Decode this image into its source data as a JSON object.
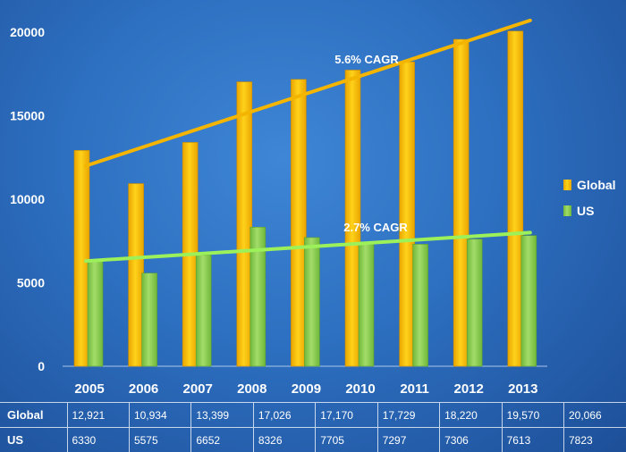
{
  "chart_data": {
    "type": "bar",
    "categories": [
      "2005",
      "2006",
      "2007",
      "2008",
      "2009",
      "2010",
      "2011",
      "2012",
      "2013"
    ],
    "series": [
      {
        "name": "Global",
        "values": [
          12921,
          10934,
          13399,
          17026,
          17170,
          17729,
          18220,
          19570,
          20066
        ],
        "color": "#f6c000",
        "trend": {
          "label": "5.6% CAGR",
          "start": 12000,
          "end": 20700,
          "color": "#f3b500"
        }
      },
      {
        "name": "US",
        "values": [
          6330,
          5575,
          6652,
          8326,
          7705,
          7297,
          7306,
          7613,
          7823
        ],
        "color": "#8ed04f",
        "trend": {
          "label": "2.7% CAGR",
          "start": 6300,
          "end": 8000,
          "color": "#9cf05a"
        }
      }
    ],
    "ylim": [
      0,
      21000
    ],
    "yticks": [
      0,
      5000,
      10000,
      15000,
      20000
    ],
    "legend": "right",
    "grid": false
  },
  "table": {
    "rows": [
      {
        "label": "Global",
        "cells": [
          "12,921",
          "10,934",
          "13,399",
          "17,026",
          "17,170",
          "17,729",
          "18,220",
          "19,570",
          "20,066"
        ]
      },
      {
        "label": "US",
        "cells": [
          "6330",
          "5575",
          "6652",
          "8326",
          "7705",
          "7297",
          "7306",
          "7613",
          "7823"
        ]
      }
    ]
  }
}
